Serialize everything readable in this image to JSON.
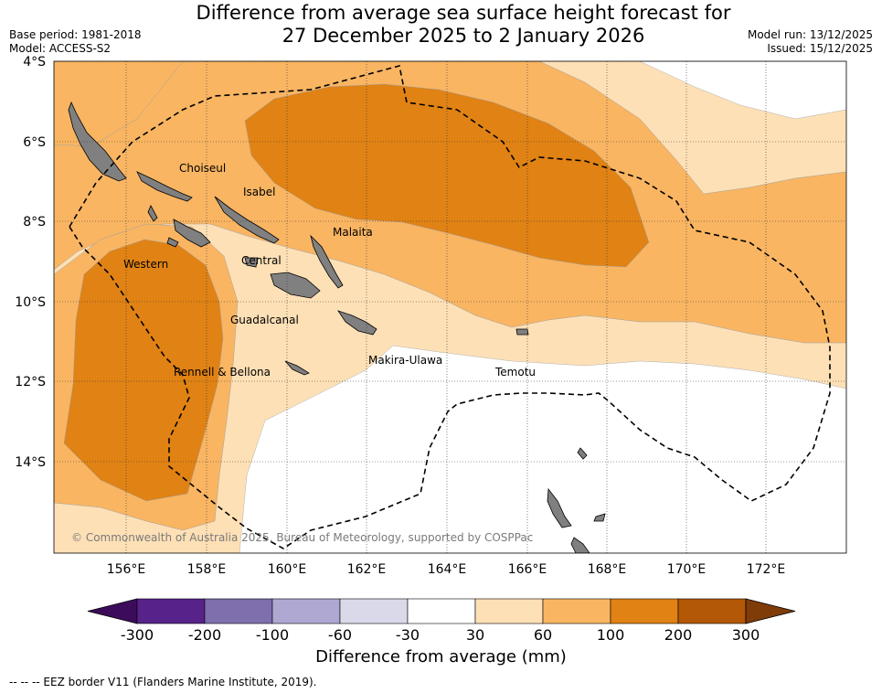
{
  "title": {
    "line1": "Difference from average sea surface height forecast for",
    "line2": "27 December 2025 to 2 January 2026"
  },
  "meta": {
    "base_period": "Base period: 1981-2018",
    "model": "Model: ACCESS-S2",
    "model_run": "Model run: 13/12/2025",
    "issued": "Issued: 15/12/2025"
  },
  "map": {
    "lat_labels": [
      "4°S",
      "6°S",
      "8°S",
      "10°S",
      "12°S",
      "14°S"
    ],
    "lon_labels": [
      "156°E",
      "158°E",
      "160°E",
      "162°E",
      "164°E",
      "166°E",
      "168°E",
      "170°E",
      "172°E"
    ],
    "province_labels": [
      "Choiseul",
      "Isabel",
      "Malaita",
      "Western",
      "Central",
      "Guadalcanal",
      "Makira-Ulawa",
      "Rennell & Bellona",
      "Temotu"
    ],
    "copyright": "© Commonwealth of Australia 2025, Bureau of Meteorology, supported by COSPPac"
  },
  "colorbar": {
    "colors": [
      "#3c0c5a",
      "#57238a",
      "#7f6fad",
      "#aea8d2",
      "#d9d9ea",
      "#ffffff",
      "#fee0b6",
      "#f9b562",
      "#e08214",
      "#b35806",
      "#7f3b08"
    ],
    "tick_labels": [
      "-300",
      "-200",
      "-100",
      "-60",
      "-30",
      "30",
      "60",
      "100",
      "200",
      "300"
    ],
    "title": "Difference from average (mm)"
  },
  "footnote": "--  --  -- EEZ border V11 (Flanders Marine Institute, 2019).",
  "colors": {
    "band_30_60": "#fee0b6",
    "band_60_100": "#f9b562",
    "band_100_200": "#e08214",
    "land": "#808080"
  }
}
